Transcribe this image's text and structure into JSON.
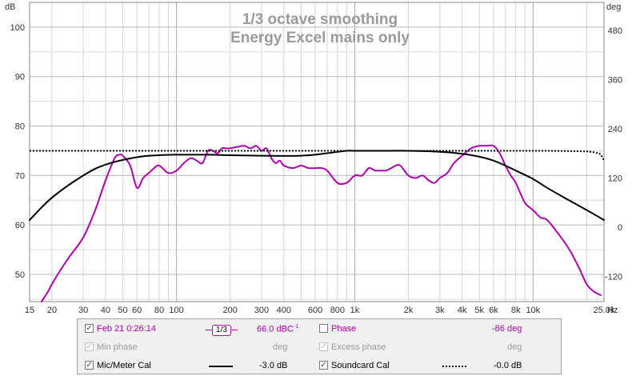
{
  "chart_data": {
    "type": "line",
    "title": "1/3 octave smoothing",
    "subtitle": "Energy Excel mains only",
    "y_left_unit": "dB",
    "y_right_unit": "deg",
    "x_unit": "Hz",
    "x_scale": "log",
    "xlim": [
      15,
      25000
    ],
    "ylim": [
      44.5,
      105
    ],
    "y2lim": [
      -181,
      548
    ],
    "grid": true,
    "x_tick_labels": [
      {
        "v": 15,
        "t": "15"
      },
      {
        "v": 20,
        "t": "20"
      },
      {
        "v": 30,
        "t": "30"
      },
      {
        "v": 40,
        "t": "40"
      },
      {
        "v": 50,
        "t": "50"
      },
      {
        "v": 60,
        "t": "60"
      },
      {
        "v": 80,
        "t": "80"
      },
      {
        "v": 100,
        "t": "100"
      },
      {
        "v": 200,
        "t": "200"
      },
      {
        "v": 300,
        "t": "300"
      },
      {
        "v": 400,
        "t": "400"
      },
      {
        "v": 600,
        "t": "600"
      },
      {
        "v": 800,
        "t": "800"
      },
      {
        "v": 1000,
        "t": "1k"
      },
      {
        "v": 2000,
        "t": "2k"
      },
      {
        "v": 3000,
        "t": "3k"
      },
      {
        "v": 4000,
        "t": "4k"
      },
      {
        "v": 5000,
        "t": "5k"
      },
      {
        "v": 6000,
        "t": "6k"
      },
      {
        "v": 8000,
        "t": "8k"
      },
      {
        "v": 10000,
        "t": "10k"
      },
      {
        "v": 25000,
        "t": "25.0k"
      }
    ],
    "y_tick_labels": [
      "100",
      "90",
      "80",
      "70",
      "60",
      "50"
    ],
    "y_tick_values": [
      100,
      90,
      80,
      70,
      60,
      50
    ],
    "y2_tick_labels": [
      "480",
      "360",
      "240",
      "120",
      "0",
      "-120"
    ],
    "y2_tick_values": [
      480,
      360,
      240,
      120,
      0,
      -120
    ],
    "series": [
      {
        "name": "Feb 21 0:26:14",
        "color": "#b000b0",
        "style": "solid",
        "x": [
          17.5,
          19,
          20,
          22,
          25,
          30,
          35,
          40,
          45,
          48,
          50,
          55,
          60,
          65,
          70,
          75,
          80,
          90,
          100,
          110,
          120,
          130,
          140,
          150,
          160,
          170,
          180,
          190,
          200,
          220,
          240,
          260,
          280,
          300,
          320,
          340,
          360,
          380,
          400,
          450,
          500,
          550,
          600,
          650,
          700,
          800,
          900,
          1000,
          1100,
          1200,
          1300,
          1400,
          1500,
          1600,
          1700,
          1800,
          2000,
          2200,
          2400,
          2600,
          2800,
          3000,
          3300,
          3600,
          4000,
          4500,
          5000,
          5500,
          6000,
          6500,
          7000,
          7500,
          8000,
          9000,
          10000,
          11000,
          12000,
          14000,
          16000,
          18000,
          20000,
          22000,
          24000
        ],
        "y": [
          44.5,
          46.5,
          48,
          50.5,
          53.5,
          57.5,
          63,
          69,
          73.5,
          74.2,
          74,
          72,
          67.5,
          69.5,
          70.5,
          71.5,
          72,
          70.5,
          71,
          72.5,
          73.5,
          73,
          72.5,
          75,
          75,
          74.5,
          75.5,
          75.5,
          75.5,
          75.8,
          76,
          75.5,
          76,
          75,
          75.5,
          73.5,
          72.5,
          73,
          72,
          71.5,
          72,
          71.5,
          71.5,
          71.5,
          71,
          68.5,
          68.5,
          70,
          70,
          71.5,
          71,
          71,
          71,
          71.5,
          72,
          72,
          70,
          69.5,
          70,
          69,
          68.5,
          69.5,
          70.5,
          72.5,
          74,
          75.5,
          76,
          76,
          76,
          74.5,
          72,
          70,
          68.5,
          64.5,
          63,
          61.5,
          61,
          58,
          55,
          51.5,
          48,
          46.5,
          45.8
        ]
      },
      {
        "name": "Mic/Meter Cal",
        "color": "#000000",
        "style": "solid",
        "x": [
          15,
          20,
          30,
          40,
          60,
          80,
          100,
          150,
          200,
          300,
          500,
          700,
          900,
          1000,
          1500,
          2000,
          3000,
          4000,
          5000,
          6000,
          7000,
          8000,
          10000,
          12000,
          15000,
          20000,
          25000
        ],
        "y": [
          61,
          65.5,
          70,
          72.2,
          73.7,
          74.1,
          74.2,
          74.2,
          74.1,
          74.0,
          74.0,
          74.5,
          75.0,
          75.0,
          75.0,
          75.0,
          74.8,
          74.4,
          73.8,
          73.0,
          72.0,
          71.0,
          69.3,
          67.5,
          65.5,
          63.0,
          61.0
        ]
      },
      {
        "name": "Soundcard Cal",
        "color": "#000000",
        "style": "dotted",
        "x": [
          15,
          100,
          1000,
          10000,
          18000,
          21000,
          23000,
          24000,
          25000
        ],
        "y": [
          75.0,
          75.0,
          75.0,
          75.0,
          74.9,
          74.8,
          74.5,
          74.2,
          73.0
        ]
      }
    ]
  },
  "legend": {
    "row1": {
      "label": "Feb 21 0:26:14",
      "smoothing": "1/3",
      "level": "66.0 dBC",
      "level_sup": "-1",
      "phase_label": "Phase",
      "phase_value": "-86 deg"
    },
    "row2": {
      "min_phase_label": "Min phase",
      "min_phase_unit": "deg",
      "excess_phase_label": "Excess phase",
      "excess_phase_unit": "deg"
    },
    "row3": {
      "mic_label": "Mic/Meter Cal",
      "mic_value": "-3.0 dB",
      "soundcard_label": "Soundcard Cal",
      "soundcard_value": "-0.0 dB"
    },
    "checks": {
      "checked": "✓"
    }
  }
}
